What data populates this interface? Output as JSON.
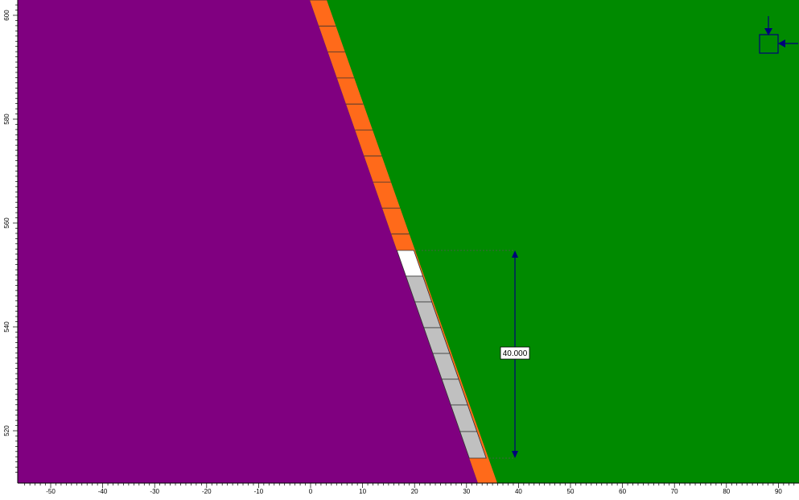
{
  "colors": {
    "rock_left": "#800080",
    "rock_right": "#008a00",
    "liner": "#ff6a1a",
    "segment_grey": "#c0c0c0",
    "segment_white": "#ffffff",
    "dimension": "#00007a",
    "axis": "#000000"
  },
  "x_axis": {
    "ticks": [
      "-50",
      "-40",
      "-30",
      "-20",
      "-10",
      "0",
      "10",
      "20",
      "30",
      "40",
      "50",
      "60",
      "70",
      "80",
      "90"
    ]
  },
  "y_axis": {
    "ticks": [
      "600",
      "580",
      "560",
      "540",
      "520"
    ]
  },
  "dimension": {
    "label": "40.000"
  },
  "icons": {
    "fixity": "fixity-support-icon"
  }
}
